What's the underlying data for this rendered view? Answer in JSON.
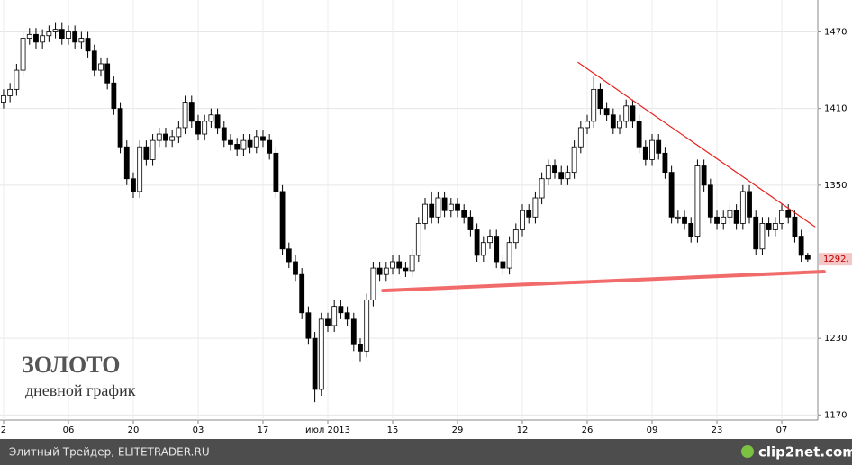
{
  "chart_data": {
    "type": "candlestick",
    "title": "ЗОЛОТО",
    "subtitle": "дневной график",
    "footer": "Элитный Трейдер, ELITETRADER.RU",
    "watermark": "clip2net.com",
    "last_price_label": "1292,",
    "last_price": 1292,
    "xlim": [
      -0.55,
      125.55
    ],
    "xticks": [
      {
        "value": 0,
        "label": "2"
      },
      {
        "value": 10,
        "label": "06"
      },
      {
        "value": 20,
        "label": "20"
      },
      {
        "value": 30,
        "label": "03"
      },
      {
        "value": 40,
        "label": "17"
      },
      {
        "value": 50,
        "label": "июл 2013"
      },
      {
        "value": 60,
        "label": "15"
      },
      {
        "value": 70,
        "label": "29"
      },
      {
        "value": 80,
        "label": "12"
      },
      {
        "value": 90,
        "label": "26"
      },
      {
        "value": 100,
        "label": "09"
      },
      {
        "value": 110,
        "label": "23"
      },
      {
        "value": 120,
        "label": "07"
      }
    ],
    "ylim": [
      1166,
      1495
    ],
    "yticks": [
      1170,
      1230,
      1350,
      1410,
      1470
    ],
    "grid": true,
    "up_color": "#ffffff",
    "down_color": "#000000",
    "open": [
      1415,
      1420,
      1425,
      1440,
      1465,
      1468,
      1462,
      1467,
      1470,
      1472,
      1465,
      1470,
      1462,
      1465,
      1455,
      1440,
      1445,
      1430,
      1410,
      1380,
      1355,
      1345,
      1380,
      1370,
      1385,
      1390,
      1385,
      1388,
      1395,
      1415,
      1400,
      1390,
      1400,
      1405,
      1395,
      1385,
      1382,
      1378,
      1385,
      1380,
      1388,
      1385,
      1375,
      1345,
      1300,
      1290,
      1280,
      1250,
      1230,
      1190,
      1245,
      1240,
      1255,
      1250,
      1245,
      1225,
      1220,
      1260,
      1285,
      1280,
      1285,
      1290,
      1285,
      1283,
      1295,
      1320,
      1335,
      1325,
      1340,
      1330,
      1335,
      1330,
      1325,
      1315,
      1295,
      1305,
      1310,
      1290,
      1285,
      1305,
      1315,
      1330,
      1325,
      1340,
      1355,
      1365,
      1360,
      1355,
      1360,
      1380,
      1395,
      1400,
      1425,
      1410,
      1405,
      1395,
      1400,
      1412,
      1400,
      1380,
      1370,
      1385,
      1375,
      1360,
      1325,
      1325,
      1320,
      1310,
      1365,
      1350,
      1325,
      1320,
      1325,
      1330,
      1320,
      1345,
      1325,
      1300,
      1320,
      1315,
      1320,
      1330,
      1325,
      1310,
      1295
    ],
    "high": [
      1425,
      1430,
      1445,
      1470,
      1473,
      1473,
      1472,
      1475,
      1477,
      1477,
      1475,
      1475,
      1470,
      1470,
      1460,
      1450,
      1450,
      1435,
      1415,
      1385,
      1360,
      1385,
      1385,
      1390,
      1395,
      1395,
      1393,
      1400,
      1420,
      1420,
      1405,
      1405,
      1410,
      1410,
      1400,
      1390,
      1387,
      1390,
      1390,
      1393,
      1393,
      1390,
      1380,
      1350,
      1305,
      1295,
      1285,
      1255,
      1235,
      1250,
      1250,
      1260,
      1260,
      1255,
      1250,
      1230,
      1265,
      1290,
      1290,
      1290,
      1295,
      1295,
      1290,
      1300,
      1325,
      1340,
      1345,
      1345,
      1345,
      1340,
      1340,
      1335,
      1330,
      1320,
      1310,
      1315,
      1315,
      1295,
      1310,
      1320,
      1335,
      1335,
      1345,
      1360,
      1370,
      1370,
      1365,
      1365,
      1385,
      1400,
      1405,
      1435,
      1430,
      1415,
      1410,
      1405,
      1417,
      1417,
      1405,
      1385,
      1390,
      1390,
      1380,
      1365,
      1330,
      1330,
      1325,
      1370,
      1370,
      1355,
      1330,
      1330,
      1335,
      1335,
      1350,
      1350,
      1330,
      1325,
      1325,
      1325,
      1335,
      1335,
      1330,
      1315,
      1297
    ],
    "low": [
      1410,
      1415,
      1420,
      1435,
      1460,
      1457,
      1457,
      1462,
      1465,
      1460,
      1460,
      1457,
      1457,
      1450,
      1435,
      1435,
      1425,
      1405,
      1375,
      1350,
      1340,
      1340,
      1365,
      1365,
      1380,
      1380,
      1380,
      1383,
      1390,
      1395,
      1385,
      1385,
      1395,
      1390,
      1380,
      1377,
      1373,
      1373,
      1375,
      1375,
      1380,
      1370,
      1340,
      1295,
      1285,
      1275,
      1245,
      1225,
      1180,
      1185,
      1235,
      1235,
      1245,
      1240,
      1220,
      1212,
      1215,
      1255,
      1275,
      1275,
      1280,
      1280,
      1278,
      1278,
      1290,
      1315,
      1320,
      1320,
      1325,
      1325,
      1325,
      1320,
      1310,
      1290,
      1290,
      1300,
      1285,
      1280,
      1280,
      1300,
      1310,
      1320,
      1320,
      1335,
      1350,
      1355,
      1350,
      1350,
      1355,
      1375,
      1390,
      1395,
      1405,
      1400,
      1390,
      1390,
      1395,
      1395,
      1375,
      1365,
      1365,
      1370,
      1355,
      1320,
      1320,
      1315,
      1305,
      1305,
      1345,
      1320,
      1315,
      1315,
      1320,
      1315,
      1315,
      1320,
      1295,
      1295,
      1310,
      1310,
      1315,
      1320,
      1305,
      1290,
      1290
    ],
    "close": [
      1420,
      1425,
      1440,
      1465,
      1468,
      1462,
      1467,
      1470,
      1472,
      1465,
      1470,
      1462,
      1465,
      1455,
      1440,
      1445,
      1430,
      1410,
      1380,
      1355,
      1345,
      1380,
      1370,
      1385,
      1390,
      1385,
      1388,
      1395,
      1415,
      1400,
      1390,
      1400,
      1405,
      1395,
      1385,
      1382,
      1378,
      1385,
      1380,
      1388,
      1385,
      1375,
      1345,
      1300,
      1290,
      1280,
      1250,
      1230,
      1190,
      1245,
      1240,
      1255,
      1250,
      1245,
      1225,
      1220,
      1260,
      1285,
      1280,
      1285,
      1290,
      1285,
      1283,
      1295,
      1320,
      1335,
      1325,
      1340,
      1330,
      1335,
      1330,
      1325,
      1315,
      1295,
      1305,
      1310,
      1290,
      1285,
      1305,
      1315,
      1330,
      1325,
      1340,
      1355,
      1365,
      1360,
      1355,
      1360,
      1380,
      1395,
      1400,
      1425,
      1410,
      1405,
      1395,
      1400,
      1412,
      1400,
      1380,
      1370,
      1385,
      1375,
      1360,
      1325,
      1325,
      1320,
      1310,
      1365,
      1350,
      1325,
      1320,
      1325,
      1330,
      1320,
      1345,
      1325,
      1300,
      1320,
      1315,
      1320,
      1330,
      1325,
      1310,
      1295,
      1292
    ],
    "trendlines": [
      {
        "x": [
          88.6,
          125.1
        ],
        "y": [
          1446,
          1317.5
        ],
        "color": "#e8231f",
        "width": 1.2
      },
      {
        "x": [
          58.5,
          126.5
        ],
        "y": [
          1267.4,
          1282.2
        ],
        "color": "#f26b6b",
        "width": 4
      }
    ]
  }
}
